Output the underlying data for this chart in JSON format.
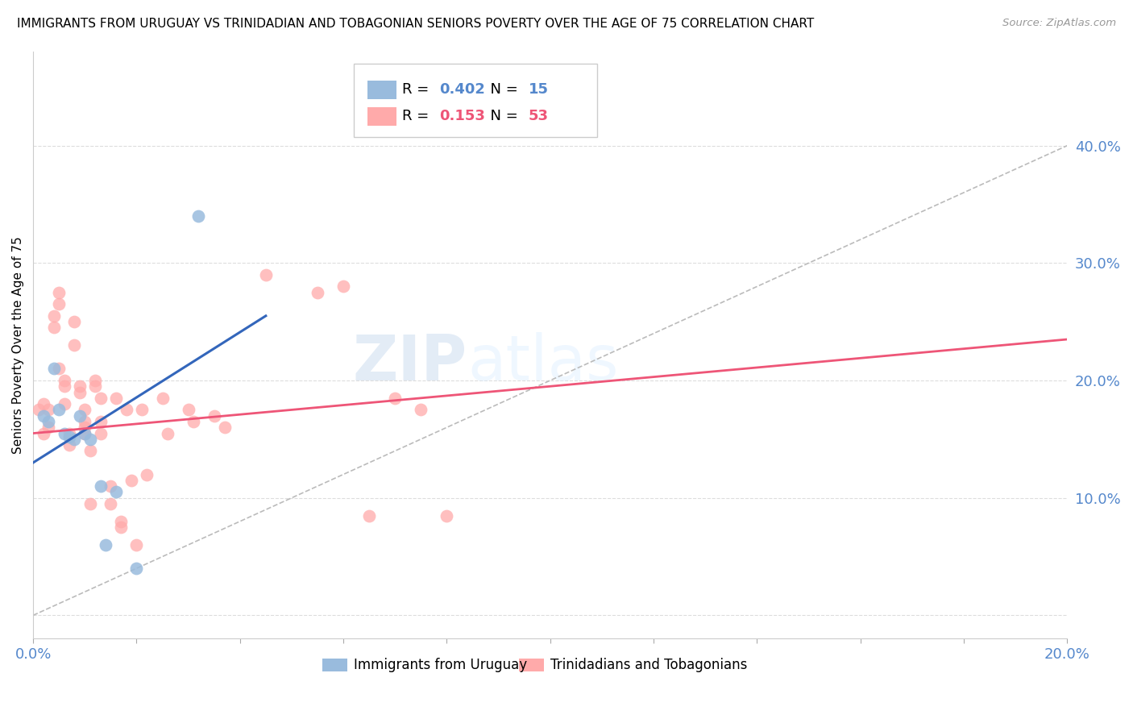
{
  "title": "IMMIGRANTS FROM URUGUAY VS TRINIDADIAN AND TOBAGONIAN SENIORS POVERTY OVER THE AGE OF 75 CORRELATION CHART",
  "source": "Source: ZipAtlas.com",
  "ylabel": "Seniors Poverty Over the Age of 75",
  "right_yticks": [
    10.0,
    20.0,
    30.0,
    40.0
  ],
  "watermark_zip": "ZIP",
  "watermark_atlas": "atlas",
  "legend_blue_R": "0.402",
  "legend_blue_N": "15",
  "legend_pink_R": "0.153",
  "legend_pink_N": "53",
  "legend_label_blue": "Immigrants from Uruguay",
  "legend_label_pink": "Trinidadians and Tobagonians",
  "blue_points": [
    [
      0.2,
      17.0
    ],
    [
      0.3,
      16.5
    ],
    [
      0.4,
      21.0
    ],
    [
      0.5,
      17.5
    ],
    [
      0.6,
      15.5
    ],
    [
      0.7,
      15.2
    ],
    [
      0.8,
      15.0
    ],
    [
      0.9,
      17.0
    ],
    [
      1.0,
      15.5
    ],
    [
      1.1,
      15.0
    ],
    [
      1.3,
      11.0
    ],
    [
      1.4,
      6.0
    ],
    [
      1.6,
      10.5
    ],
    [
      2.0,
      4.0
    ],
    [
      3.2,
      34.0
    ]
  ],
  "pink_points": [
    [
      0.1,
      17.5
    ],
    [
      0.2,
      18.0
    ],
    [
      0.2,
      15.5
    ],
    [
      0.3,
      17.5
    ],
    [
      0.3,
      16.0
    ],
    [
      0.4,
      25.5
    ],
    [
      0.4,
      24.5
    ],
    [
      0.5,
      26.5
    ],
    [
      0.5,
      27.5
    ],
    [
      0.5,
      21.0
    ],
    [
      0.6,
      19.5
    ],
    [
      0.6,
      20.0
    ],
    [
      0.6,
      18.0
    ],
    [
      0.7,
      15.5
    ],
    [
      0.7,
      14.5
    ],
    [
      0.8,
      25.0
    ],
    [
      0.8,
      23.0
    ],
    [
      0.9,
      19.5
    ],
    [
      0.9,
      19.0
    ],
    [
      1.0,
      17.5
    ],
    [
      1.0,
      16.5
    ],
    [
      1.0,
      16.0
    ],
    [
      1.0,
      15.5
    ],
    [
      1.1,
      14.0
    ],
    [
      1.1,
      9.5
    ],
    [
      1.2,
      20.0
    ],
    [
      1.2,
      19.5
    ],
    [
      1.3,
      18.5
    ],
    [
      1.3,
      16.5
    ],
    [
      1.3,
      15.5
    ],
    [
      1.5,
      11.0
    ],
    [
      1.5,
      9.5
    ],
    [
      1.6,
      18.5
    ],
    [
      1.7,
      8.0
    ],
    [
      1.7,
      7.5
    ],
    [
      1.8,
      17.5
    ],
    [
      1.9,
      11.5
    ],
    [
      2.0,
      6.0
    ],
    [
      2.1,
      17.5
    ],
    [
      2.2,
      12.0
    ],
    [
      2.5,
      18.5
    ],
    [
      2.6,
      15.5
    ],
    [
      3.0,
      17.5
    ],
    [
      3.1,
      16.5
    ],
    [
      3.5,
      17.0
    ],
    [
      3.7,
      16.0
    ],
    [
      4.5,
      29.0
    ],
    [
      5.5,
      27.5
    ],
    [
      6.0,
      28.0
    ],
    [
      6.5,
      8.5
    ],
    [
      7.0,
      18.5
    ],
    [
      7.5,
      17.5
    ],
    [
      8.0,
      8.5
    ]
  ],
  "blue_line": [
    [
      0.0,
      13.0
    ],
    [
      4.5,
      25.5
    ]
  ],
  "pink_line": [
    [
      0.0,
      15.5
    ],
    [
      20.0,
      23.5
    ]
  ],
  "diag_line": [
    [
      0.0,
      0.0
    ],
    [
      20.0,
      40.0
    ]
  ],
  "xlim": [
    0.0,
    20.0
  ],
  "ylim": [
    -2.0,
    48.0
  ],
  "ytick_positions": [
    0.0,
    10.0,
    20.0,
    30.0,
    40.0
  ],
  "blue_color": "#99BBDD",
  "pink_color": "#FFAAAA",
  "blue_line_color": "#3366BB",
  "pink_line_color": "#EE5577",
  "diag_color": "#BBBBBB",
  "right_axis_color": "#5588CC",
  "grid_color": "#DDDDDD",
  "bg_color": "#FFFFFF"
}
